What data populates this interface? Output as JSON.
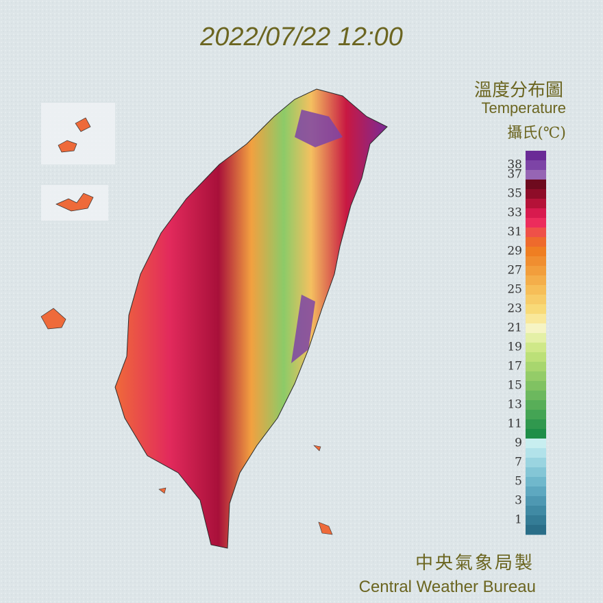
{
  "timestamp": "2022/07/22 12:00",
  "legend": {
    "title": "溫度分布圖",
    "subtitle": "Temperature",
    "unit": "攝氏(℃)",
    "ticks": [
      38,
      37,
      35,
      33,
      31,
      29,
      27,
      25,
      23,
      21,
      19,
      17,
      15,
      13,
      11,
      9,
      7,
      5,
      3,
      1
    ],
    "colors": [
      "#6a2b96",
      "#7d44a6",
      "#9665b4",
      "#6e0a1e",
      "#8e0c28",
      "#b51238",
      "#d81a4e",
      "#ec2c5c",
      "#ef5048",
      "#ee6a2c",
      "#ef7e22",
      "#f08e30",
      "#f29e3c",
      "#f4ae4a",
      "#f6be58",
      "#f7cc68",
      "#f8da78",
      "#f9e89a",
      "#f6f4c4",
      "#e4f0a6",
      "#cfe888",
      "#bce078",
      "#a8d66e",
      "#94cc68",
      "#80c262",
      "#6cb85e",
      "#58ae58",
      "#44a454",
      "#30984e",
      "#1e8e48",
      "#c8eef0",
      "#b2e2ea",
      "#9ad4e0",
      "#84c6d6",
      "#70b8cc",
      "#5ea8c0",
      "#4e98b2",
      "#408aa4",
      "#347c96",
      "#2a6e88"
    ]
  },
  "credit": {
    "zh": "中央氣象局製",
    "en": "Central Weather Bureau"
  }
}
